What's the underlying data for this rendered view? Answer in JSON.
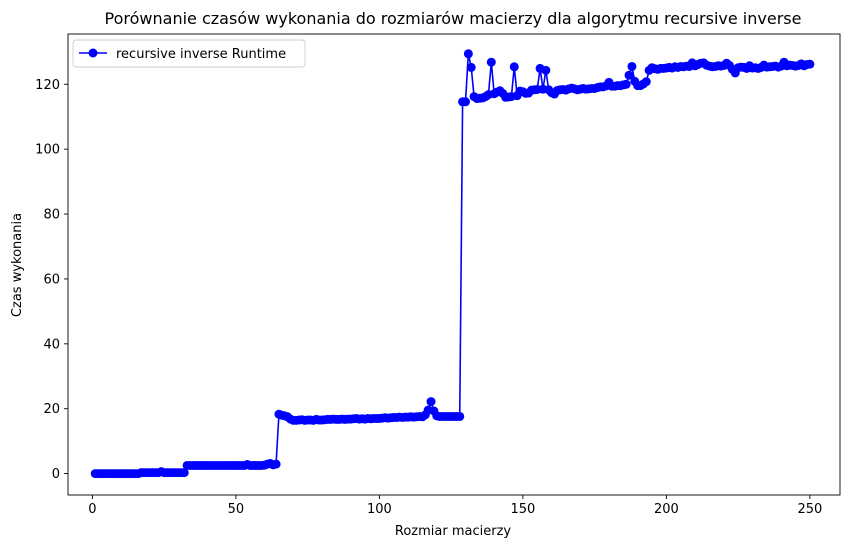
{
  "chart_data": {
    "type": "line",
    "title": "Porównanie czasów wykonania do rozmiarów macierzy dla algorytmu recursive inverse",
    "xlabel": "Rozmiar macierzy",
    "ylabel": "Czas wykonania",
    "xlim": [
      -8.5,
      260.5
    ],
    "ylim": [
      -6.6,
      135.5
    ],
    "xticks": [
      0,
      50,
      100,
      150,
      200,
      250
    ],
    "yticks": [
      0,
      20,
      40,
      60,
      80,
      100,
      120
    ],
    "grid": false,
    "legend_position": "top-left",
    "color": "#0000ff",
    "series": [
      {
        "name": "recursive inverse Runtime",
        "color": "#0000ff",
        "marker": "circle",
        "points": [
          [
            1,
            0
          ],
          [
            2,
            0
          ],
          [
            3,
            0
          ],
          [
            4,
            0
          ],
          [
            5,
            0
          ],
          [
            6,
            0
          ],
          [
            7,
            0
          ],
          [
            8,
            0
          ],
          [
            9,
            0
          ],
          [
            10,
            0
          ],
          [
            11,
            0
          ],
          [
            12,
            0
          ],
          [
            13,
            0
          ],
          [
            14,
            0
          ],
          [
            15,
            0
          ],
          [
            16,
            0
          ],
          [
            17,
            0.3
          ],
          [
            18,
            0.3
          ],
          [
            19,
            0.3
          ],
          [
            20,
            0.3
          ],
          [
            21,
            0.3
          ],
          [
            22,
            0.3
          ],
          [
            23,
            0.3
          ],
          [
            24,
            0.6
          ],
          [
            25,
            0.3
          ],
          [
            26,
            0.3
          ],
          [
            27,
            0.3
          ],
          [
            28,
            0.3
          ],
          [
            29,
            0.3
          ],
          [
            30,
            0.3
          ],
          [
            31,
            0.3
          ],
          [
            32,
            0.3
          ],
          [
            33,
            2.5
          ],
          [
            34,
            2.5
          ],
          [
            35,
            2.5
          ],
          [
            36,
            2.5
          ],
          [
            37,
            2.5
          ],
          [
            38,
            2.5
          ],
          [
            39,
            2.5
          ],
          [
            40,
            2.5
          ],
          [
            41,
            2.5
          ],
          [
            42,
            2.5
          ],
          [
            43,
            2.5
          ],
          [
            44,
            2.5
          ],
          [
            45,
            2.5
          ],
          [
            46,
            2.5
          ],
          [
            47,
            2.5
          ],
          [
            48,
            2.5
          ],
          [
            49,
            2.5
          ],
          [
            50,
            2.5
          ],
          [
            51,
            2.5
          ],
          [
            52,
            2.5
          ],
          [
            53,
            2.5
          ],
          [
            54,
            2.8
          ],
          [
            55,
            2.5
          ],
          [
            56,
            2.5
          ],
          [
            57,
            2.5
          ],
          [
            58,
            2.5
          ],
          [
            59,
            2.5
          ],
          [
            60,
            2.6
          ],
          [
            61,
            2.9
          ],
          [
            62,
            3.1
          ],
          [
            63,
            2.7
          ],
          [
            64,
            2.9
          ],
          [
            65,
            18.3
          ],
          [
            66,
            18
          ],
          [
            67,
            17.8
          ],
          [
            68,
            17.5
          ],
          [
            69,
            16.8
          ],
          [
            70,
            16.4
          ],
          [
            71,
            16.4
          ],
          [
            72,
            16.5
          ],
          [
            73,
            16.6
          ],
          [
            74,
            16.4
          ],
          [
            75,
            16.5
          ],
          [
            76,
            16.5
          ],
          [
            77,
            16.4
          ],
          [
            78,
            16.7
          ],
          [
            79,
            16.5
          ],
          [
            80,
            16.5
          ],
          [
            81,
            16.6
          ],
          [
            82,
            16.7
          ],
          [
            83,
            16.7
          ],
          [
            84,
            16.8
          ],
          [
            85,
            16.7
          ],
          [
            86,
            16.7
          ],
          [
            87,
            16.8
          ],
          [
            88,
            16.7
          ],
          [
            89,
            16.8
          ],
          [
            90,
            16.8
          ],
          [
            91,
            16.9
          ],
          [
            92,
            17
          ],
          [
            93,
            16.8
          ],
          [
            94,
            16.9
          ],
          [
            95,
            16.8
          ],
          [
            96,
            17
          ],
          [
            97,
            16.9
          ],
          [
            98,
            17
          ],
          [
            99,
            17
          ],
          [
            100,
            17
          ],
          [
            101,
            17.1
          ],
          [
            102,
            17.2
          ],
          [
            103,
            17.1
          ],
          [
            104,
            17.2
          ],
          [
            105,
            17.3
          ],
          [
            106,
            17.3
          ],
          [
            107,
            17.4
          ],
          [
            108,
            17.3
          ],
          [
            109,
            17.4
          ],
          [
            110,
            17.4
          ],
          [
            111,
            17.5
          ],
          [
            112,
            17.4
          ],
          [
            113,
            17.5
          ],
          [
            114,
            17.6
          ],
          [
            115,
            17.5
          ],
          [
            116,
            18.1
          ],
          [
            117,
            19.6
          ],
          [
            118,
            22.2
          ],
          [
            119,
            19.3
          ],
          [
            120,
            17.8
          ],
          [
            121,
            17.6
          ],
          [
            122,
            17.6
          ],
          [
            123,
            17.6
          ],
          [
            124,
            17.6
          ],
          [
            125,
            17.6
          ],
          [
            126,
            17.6
          ],
          [
            127,
            17.6
          ],
          [
            128,
            17.6
          ],
          [
            129,
            114.6
          ],
          [
            130,
            114.6
          ],
          [
            131,
            129.4
          ],
          [
            132,
            125.2
          ],
          [
            133,
            116.2
          ],
          [
            134,
            115.6
          ],
          [
            135,
            115.7
          ],
          [
            136,
            115.8
          ],
          [
            137,
            116.2
          ],
          [
            138,
            116.8
          ],
          [
            139,
            126.8
          ],
          [
            140,
            117.1
          ],
          [
            141,
            117.6
          ],
          [
            142,
            118
          ],
          [
            143,
            117.2
          ],
          [
            144,
            116
          ],
          [
            145,
            116.1
          ],
          [
            146,
            116.2
          ],
          [
            147,
            125.4
          ],
          [
            148,
            116.5
          ],
          [
            149,
            117.9
          ],
          [
            150,
            117.7
          ],
          [
            151,
            117.2
          ],
          [
            152,
            117.3
          ],
          [
            153,
            118.2
          ],
          [
            154,
            118.3
          ],
          [
            155,
            118.4
          ],
          [
            156,
            124.9
          ],
          [
            157,
            118.5
          ],
          [
            158,
            124.3
          ],
          [
            159,
            118.3
          ],
          [
            160,
            117.4
          ],
          [
            161,
            117
          ],
          [
            162,
            118.1
          ],
          [
            163,
            118.3
          ],
          [
            164,
            118.4
          ],
          [
            165,
            118.2
          ],
          [
            166,
            118.6
          ],
          [
            167,
            118.8
          ],
          [
            168,
            118.6
          ],
          [
            169,
            118.3
          ],
          [
            170,
            118.5
          ],
          [
            171,
            118.7
          ],
          [
            172,
            118.5
          ],
          [
            173,
            118.6
          ],
          [
            174,
            118.7
          ],
          [
            175,
            118.7
          ],
          [
            176,
            119
          ],
          [
            177,
            119.2
          ],
          [
            178,
            119.2
          ],
          [
            179,
            119.5
          ],
          [
            180,
            120.6
          ],
          [
            181,
            119.4
          ],
          [
            182,
            119.4
          ],
          [
            183,
            119.6
          ],
          [
            184,
            119.6
          ],
          [
            185,
            119.8
          ],
          [
            186,
            120
          ],
          [
            187,
            122.8
          ],
          [
            188,
            125.5
          ],
          [
            189,
            120.9
          ],
          [
            190,
            119.6
          ],
          [
            191,
            119.6
          ],
          [
            192,
            120.1
          ],
          [
            193,
            120.8
          ],
          [
            194,
            124.3
          ],
          [
            195,
            125.1
          ],
          [
            196,
            124.8
          ],
          [
            197,
            124.6
          ],
          [
            198,
            124.9
          ],
          [
            199,
            124.9
          ],
          [
            200,
            125
          ],
          [
            201,
            125.2
          ],
          [
            202,
            125
          ],
          [
            203,
            125.4
          ],
          [
            204,
            125.2
          ],
          [
            205,
            125.5
          ],
          [
            206,
            125.4
          ],
          [
            207,
            125.6
          ],
          [
            208,
            125.5
          ],
          [
            209,
            126.6
          ],
          [
            210,
            125.7
          ],
          [
            211,
            126.1
          ],
          [
            212,
            126.5
          ],
          [
            213,
            126.6
          ],
          [
            214,
            125.9
          ],
          [
            215,
            125.6
          ],
          [
            216,
            125.4
          ],
          [
            217,
            125.5
          ],
          [
            218,
            125.7
          ],
          [
            219,
            125.6
          ],
          [
            220,
            125.8
          ],
          [
            221,
            126.5
          ],
          [
            222,
            125.8
          ],
          [
            223,
            124.6
          ],
          [
            224,
            123.5
          ],
          [
            225,
            125.1
          ],
          [
            226,
            125.3
          ],
          [
            227,
            125.2
          ],
          [
            228,
            124.9
          ],
          [
            229,
            125.7
          ],
          [
            230,
            125
          ],
          [
            231,
            125.1
          ],
          [
            232,
            124.9
          ],
          [
            233,
            125.2
          ],
          [
            234,
            125.9
          ],
          [
            235,
            125.3
          ],
          [
            236,
            125.4
          ],
          [
            237,
            125.5
          ],
          [
            238,
            125.6
          ],
          [
            239,
            125.3
          ],
          [
            240,
            125.6
          ],
          [
            241,
            126.8
          ],
          [
            242,
            125.7
          ],
          [
            243,
            125.9
          ],
          [
            244,
            125.8
          ],
          [
            245,
            125.6
          ],
          [
            246,
            125.8
          ],
          [
            247,
            126.3
          ],
          [
            248,
            125.7
          ],
          [
            249,
            126.1
          ],
          [
            250,
            126.2
          ]
        ]
      }
    ]
  }
}
